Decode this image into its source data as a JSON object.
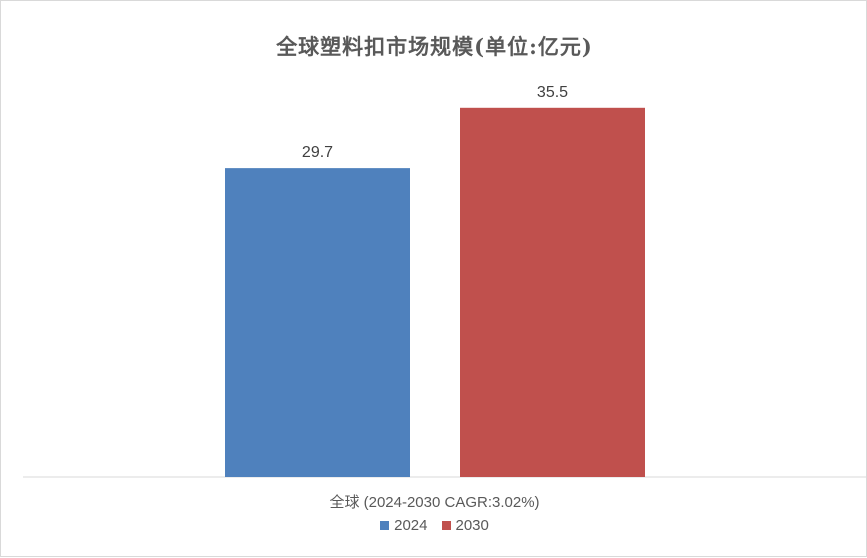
{
  "chart_data": {
    "type": "bar",
    "title": "全球塑料扣市场规模(单位:亿元)",
    "categories": [
      "全球 (2024-2030 CAGR:3.02%)"
    ],
    "series": [
      {
        "name": "2024",
        "values": [
          29.7
        ],
        "color": "#4f81bd",
        "value_label": "29.7"
      },
      {
        "name": "2030",
        "values": [
          35.5
        ],
        "color": "#c0504d",
        "value_label": "35.5"
      }
    ],
    "xlabel": "",
    "ylabel": "",
    "ylim": [
      0,
      40
    ],
    "grid": false,
    "legend_position": "bottom"
  }
}
